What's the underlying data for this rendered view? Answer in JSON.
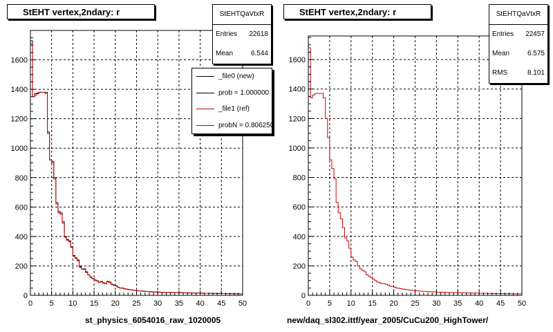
{
  "colors": {
    "reference": "#cc0000",
    "new": "#000000"
  },
  "left_panel": {
    "title": "StEHT  vertex,2ndary: r",
    "stats": {
      "name": "StEHTQaVtxR",
      "rows": [
        {
          "label": "Entries",
          "value": "22618"
        },
        {
          "label": "Mean",
          "value": "6.544"
        }
      ]
    },
    "legend": [
      {
        "label": "_file0 (new)",
        "color": "#000000"
      },
      {
        "label": "prob = 1.000000",
        "color": "#000000"
      },
      {
        "label": "_file1 (ref)",
        "color": "#cc0000"
      },
      {
        "label": "probN = 0.806250",
        "color": "#cc0000"
      }
    ],
    "xlabel": "st_physics_6054016_raw_1020005"
  },
  "right_panel": {
    "title": "StEHT  vertex,2ndary: r",
    "stats": {
      "name": "StEHTQaVtxR",
      "rows": [
        {
          "label": "Entries",
          "value": "22457"
        },
        {
          "label": "Mean",
          "value": "6.575"
        },
        {
          "label": "RMS",
          "value": "8.101"
        }
      ]
    },
    "xlabel": "new/daq_sl302.ittf/year_2005/CuCu200_HighTower/"
  },
  "chart_data": [
    {
      "type": "bar",
      "title": "StEHT  vertex,2ndary: r",
      "xlabel": "st_physics_6054016_raw_1020005",
      "ylabel": "",
      "xlim": [
        0,
        50
      ],
      "ylim": [
        0,
        1800
      ],
      "xticks": [
        0,
        5,
        10,
        15,
        20,
        25,
        30,
        35,
        40,
        45,
        50
      ],
      "yticks": [
        0,
        200,
        400,
        600,
        800,
        1000,
        1200,
        1400,
        1600
      ],
      "grid": true,
      "bin_width": 0.5,
      "series": [
        {
          "name": "_file0 (new)",
          "color": "#000000",
          "values": [
            1730,
            1350,
            1370,
            1375,
            1380,
            1380,
            1380,
            1380,
            1110,
            920,
            910,
            800,
            630,
            570,
            560,
            500,
            400,
            380,
            370,
            330,
            270,
            255,
            240,
            195,
            180,
            180,
            160,
            140,
            125,
            115,
            105,
            100,
            90,
            95,
            85,
            80,
            95,
            90,
            75,
            70,
            65,
            55,
            50,
            50,
            45,
            42,
            40,
            38,
            36,
            34,
            32,
            30,
            30,
            28,
            27,
            26,
            25,
            24,
            23,
            22,
            22,
            21,
            20,
            20,
            20,
            20,
            20,
            19,
            19,
            18,
            18,
            18,
            17,
            17,
            17,
            16,
            16,
            16,
            15,
            15,
            15,
            15,
            14,
            14,
            14,
            14,
            13,
            13,
            13,
            13,
            12,
            12,
            12,
            12,
            11,
            11,
            11,
            11,
            10,
            10
          ]
        },
        {
          "name": "_file1 (ref)",
          "color": "#cc0000",
          "values": [
            1710,
            1350,
            1360,
            1370,
            1380,
            1380,
            1380,
            1370,
            1100,
            920,
            900,
            790,
            620,
            560,
            550,
            490,
            395,
            375,
            365,
            325,
            265,
            250,
            235,
            190,
            178,
            175,
            155,
            138,
            122,
            113,
            103,
            98,
            88,
            92,
            83,
            78,
            92,
            87,
            73,
            68,
            63,
            54,
            49,
            48,
            44,
            41,
            39,
            37,
            35,
            33,
            31,
            30,
            29,
            27,
            26,
            25,
            24,
            23,
            22,
            22,
            21,
            20,
            20,
            19,
            19,
            19,
            19,
            18,
            18,
            18,
            17,
            17,
            17,
            16,
            16,
            16,
            15,
            15,
            15,
            15,
            14,
            14,
            14,
            14,
            13,
            13,
            13,
            13,
            12,
            12,
            12,
            12,
            11,
            11,
            11,
            11,
            10,
            10,
            10,
            10
          ]
        }
      ]
    },
    {
      "type": "bar",
      "title": "StEHT  vertex,2ndary: r",
      "xlabel": "new/daq_sl302.ittf/year_2005/CuCu200_HighTower/",
      "ylabel": "",
      "xlim": [
        0,
        50
      ],
      "ylim": [
        0,
        1760
      ],
      "xticks": [
        0,
        5,
        10,
        15,
        20,
        25,
        30,
        35,
        40,
        45,
        50
      ],
      "yticks": [
        0,
        200,
        400,
        600,
        800,
        1000,
        1200,
        1400,
        1600
      ],
      "grid": true,
      "bin_width": 0.5,
      "series": [
        {
          "name": "",
          "color": "#cc0000",
          "values": [
            1680,
            1340,
            1360,
            1370,
            1370,
            1370,
            1370,
            1340,
            1200,
            1070,
            920,
            860,
            790,
            630,
            560,
            520,
            460,
            390,
            370,
            320,
            260,
            240,
            230,
            200,
            180,
            170,
            160,
            140,
            130,
            120,
            110,
            100,
            90,
            85,
            80,
            80,
            75,
            70,
            62,
            60,
            55,
            50,
            48,
            45,
            42,
            40,
            38,
            36,
            34,
            33,
            31,
            30,
            29,
            28,
            27,
            26,
            25,
            24,
            24,
            23,
            22,
            22,
            21,
            21,
            20,
            20,
            19,
            19,
            18,
            18,
            18,
            17,
            17,
            17,
            16,
            16,
            16,
            15,
            15,
            15,
            14,
            14,
            14,
            14,
            13,
            13,
            13,
            12,
            12,
            12,
            12,
            11,
            11,
            11,
            11,
            10,
            10,
            10,
            10,
            10
          ]
        }
      ]
    }
  ]
}
